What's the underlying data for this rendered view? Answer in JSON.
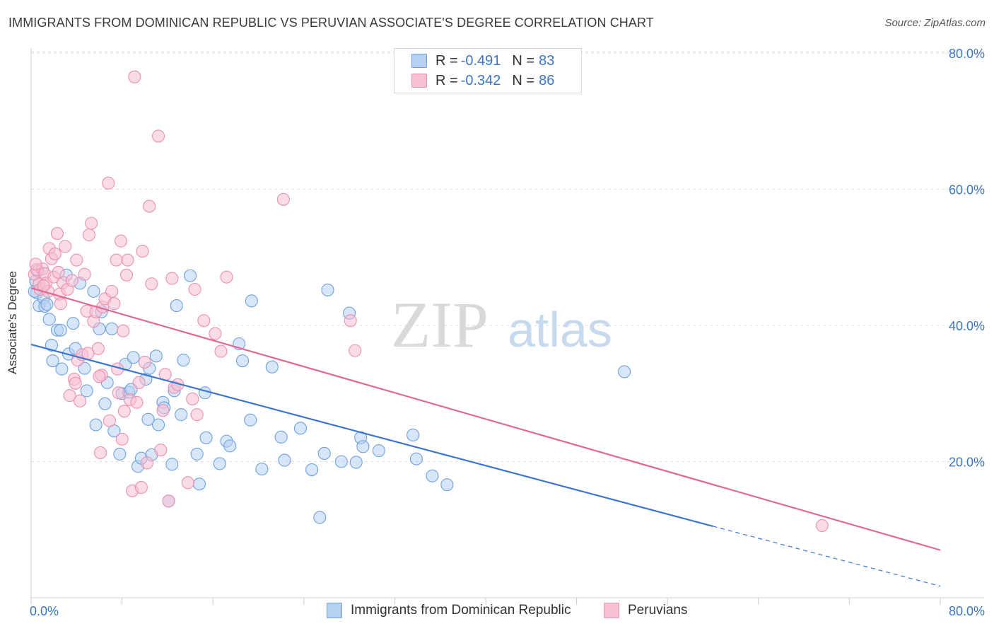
{
  "title": "IMMIGRANTS FROM DOMINICAN REPUBLIC VS PERUVIAN ASSOCIATE'S DEGREE CORRELATION CHART",
  "source": "Source: ZipAtlas.com",
  "watermark": {
    "zip": "ZIP",
    "atlas": "atlas"
  },
  "legend": {
    "series1": {
      "r_label": "R =",
      "r_value": "-0.491",
      "n_label": "N =",
      "n_value": "83"
    },
    "series2": {
      "r_label": "R =",
      "r_value": "-0.342",
      "n_label": "N =",
      "n_value": "86"
    }
  },
  "colors": {
    "blue_fill": "#b7d1f3",
    "blue_stroke": "#6fa0dd",
    "blue_line": "#3a76cf",
    "pink_fill": "#f7c0d2",
    "pink_stroke": "#ea8fb0",
    "pink_line": "#e06892",
    "tick_label": "#3a76c4",
    "grid": "#dddddd"
  },
  "chart_data": {
    "type": "scatter",
    "title": "IMMIGRANTS FROM DOMINICAN REPUBLIC VS PERUVIAN ASSOCIATE'S DEGREE CORRELATION CHART",
    "xlabel": "",
    "ylabel": "Associate's Degree",
    "xlim": [
      0,
      80
    ],
    "ylim": [
      0,
      80
    ],
    "x_tick_labels": [
      "0.0%",
      "80.0%"
    ],
    "y_tick_labels": [
      "20.0%",
      "40.0%",
      "60.0%",
      "80.0%"
    ],
    "y_ticks": [
      20,
      40,
      60,
      80
    ],
    "grid": true,
    "legend_position": "top-center",
    "series": [
      {
        "name": "Immigrants from Dominican Republic",
        "color": "#6fa0dd",
        "trend": {
          "x0": 0,
          "y0": 37.2,
          "x1": 60,
          "y1": 10.5,
          "dashed_to_x": 80,
          "dashed_to_y": 1.7
        },
        "points": [
          [
            0.4,
            46.5
          ],
          [
            0.5,
            44.8
          ],
          [
            0.7,
            42.9
          ],
          [
            1.1,
            44.0
          ],
          [
            1.2,
            42.8
          ],
          [
            1.4,
            43.1
          ],
          [
            1.6,
            40.9
          ],
          [
            1.8,
            37.1
          ],
          [
            1.9,
            34.8
          ],
          [
            2.3,
            39.3
          ],
          [
            2.6,
            39.3
          ],
          [
            2.7,
            33.6
          ],
          [
            3.1,
            47.4
          ],
          [
            3.3,
            35.8
          ],
          [
            3.7,
            40.3
          ],
          [
            3.9,
            36.6
          ],
          [
            4.3,
            46.2
          ],
          [
            4.7,
            33.7
          ],
          [
            4.9,
            30.4
          ],
          [
            5.5,
            45.0
          ],
          [
            5.7,
            25.4
          ],
          [
            6.0,
            39.5
          ],
          [
            6.2,
            42.0
          ],
          [
            6.5,
            28.5
          ],
          [
            6.7,
            31.6
          ],
          [
            7.1,
            39.5
          ],
          [
            7.3,
            24.5
          ],
          [
            7.8,
            21.1
          ],
          [
            8.0,
            30.0
          ],
          [
            8.3,
            34.3
          ],
          [
            8.6,
            30.2
          ],
          [
            8.8,
            30.6
          ],
          [
            9.0,
            35.3
          ],
          [
            9.4,
            19.3
          ],
          [
            9.7,
            20.5
          ],
          [
            10.1,
            32.1
          ],
          [
            10.3,
            26.2
          ],
          [
            10.4,
            33.7
          ],
          [
            10.6,
            21.0
          ],
          [
            11.0,
            35.5
          ],
          [
            11.2,
            25.4
          ],
          [
            11.6,
            28.7
          ],
          [
            11.7,
            27.9
          ],
          [
            12.1,
            14.2
          ],
          [
            12.4,
            19.6
          ],
          [
            12.6,
            30.4
          ],
          [
            12.8,
            42.9
          ],
          [
            13.2,
            26.9
          ],
          [
            13.4,
            34.9
          ],
          [
            14.0,
            47.3
          ],
          [
            14.6,
            21.1
          ],
          [
            14.8,
            16.7
          ],
          [
            15.3,
            30.1
          ],
          [
            15.4,
            23.5
          ],
          [
            16.6,
            19.7
          ],
          [
            17.2,
            23.0
          ],
          [
            17.5,
            22.3
          ],
          [
            18.3,
            37.3
          ],
          [
            18.6,
            34.8
          ],
          [
            19.3,
            26.1
          ],
          [
            19.4,
            43.6
          ],
          [
            20.3,
            18.9
          ],
          [
            21.2,
            33.9
          ],
          [
            22.0,
            23.6
          ],
          [
            22.3,
            20.2
          ],
          [
            23.7,
            24.9
          ],
          [
            24.7,
            18.8
          ],
          [
            25.4,
            11.8
          ],
          [
            25.8,
            21.2
          ],
          [
            26.1,
            45.2
          ],
          [
            27.3,
            20.0
          ],
          [
            28.0,
            41.8
          ],
          [
            28.6,
            19.9
          ],
          [
            29.0,
            23.5
          ],
          [
            29.2,
            22.2
          ],
          [
            30.6,
            21.6
          ],
          [
            33.6,
            23.9
          ],
          [
            33.9,
            20.4
          ],
          [
            35.3,
            17.9
          ],
          [
            36.6,
            16.6
          ],
          [
            52.2,
            33.2
          ],
          [
            0.3,
            45.0
          ],
          [
            0.6,
            48.0
          ]
        ]
      },
      {
        "name": "Peruvians",
        "color": "#ea8fb0",
        "trend": {
          "x0": 0,
          "y0": 45.5,
          "x1": 80,
          "y1": 7.0
        },
        "points": [
          [
            0.3,
            47.5
          ],
          [
            0.5,
            48.2
          ],
          [
            0.7,
            46.1
          ],
          [
            0.8,
            45.3
          ],
          [
            1.0,
            48.3
          ],
          [
            1.2,
            47.6
          ],
          [
            1.3,
            46.2
          ],
          [
            1.5,
            45.0
          ],
          [
            1.6,
            51.3
          ],
          [
            1.8,
            49.8
          ],
          [
            2.0,
            47.1
          ],
          [
            2.1,
            50.5
          ],
          [
            2.3,
            53.5
          ],
          [
            2.5,
            44.6
          ],
          [
            2.6,
            43.2
          ],
          [
            2.8,
            46.3
          ],
          [
            3.0,
            51.6
          ],
          [
            3.2,
            45.3
          ],
          [
            3.4,
            29.7
          ],
          [
            3.6,
            46.6
          ],
          [
            3.8,
            32.1
          ],
          [
            4.0,
            49.6
          ],
          [
            4.1,
            34.9
          ],
          [
            4.3,
            28.9
          ],
          [
            4.5,
            35.7
          ],
          [
            4.7,
            47.5
          ],
          [
            4.9,
            42.1
          ],
          [
            5.1,
            53.3
          ],
          [
            5.3,
            55.0
          ],
          [
            5.5,
            40.6
          ],
          [
            5.7,
            42.0
          ],
          [
            5.9,
            36.6
          ],
          [
            6.1,
            21.3
          ],
          [
            6.2,
            32.7
          ],
          [
            6.3,
            42.7
          ],
          [
            6.5,
            43.9
          ],
          [
            6.8,
            60.9
          ],
          [
            6.9,
            26.0
          ],
          [
            7.1,
            45.0
          ],
          [
            7.3,
            43.2
          ],
          [
            7.5,
            49.6
          ],
          [
            7.7,
            30.1
          ],
          [
            7.9,
            52.4
          ],
          [
            8.1,
            39.2
          ],
          [
            8.2,
            27.4
          ],
          [
            8.4,
            47.4
          ],
          [
            8.5,
            49.6
          ],
          [
            8.7,
            29.1
          ],
          [
            8.9,
            15.7
          ],
          [
            9.1,
            76.5
          ],
          [
            9.3,
            28.7
          ],
          [
            9.5,
            31.6
          ],
          [
            9.7,
            16.2
          ],
          [
            9.8,
            50.9
          ],
          [
            10.0,
            34.6
          ],
          [
            10.2,
            19.8
          ],
          [
            10.4,
            57.5
          ],
          [
            10.6,
            46.1
          ],
          [
            11.2,
            67.8
          ],
          [
            11.4,
            21.7
          ],
          [
            11.8,
            32.8
          ],
          [
            12.1,
            14.2
          ],
          [
            12.4,
            46.9
          ],
          [
            12.6,
            30.9
          ],
          [
            13.8,
            16.9
          ],
          [
            14.2,
            29.2
          ],
          [
            14.4,
            45.3
          ],
          [
            14.6,
            26.9
          ],
          [
            15.2,
            40.7
          ],
          [
            16.2,
            38.8
          ],
          [
            16.7,
            36.2
          ],
          [
            17.2,
            47.1
          ],
          [
            22.2,
            58.5
          ],
          [
            28.1,
            40.7
          ],
          [
            28.5,
            36.3
          ],
          [
            69.6,
            10.6
          ],
          [
            0.4,
            49.0
          ],
          [
            1.1,
            45.8
          ],
          [
            2.4,
            47.8
          ],
          [
            3.9,
            31.5
          ],
          [
            5.0,
            35.9
          ],
          [
            6.0,
            32.5
          ],
          [
            7.6,
            33.6
          ],
          [
            8.0,
            23.3
          ],
          [
            11.6,
            27.5
          ],
          [
            12.9,
            31.3
          ]
        ]
      }
    ]
  },
  "bottom_legend": {
    "item1": "Immigrants from Dominican Republic",
    "item2": "Peruvians"
  }
}
